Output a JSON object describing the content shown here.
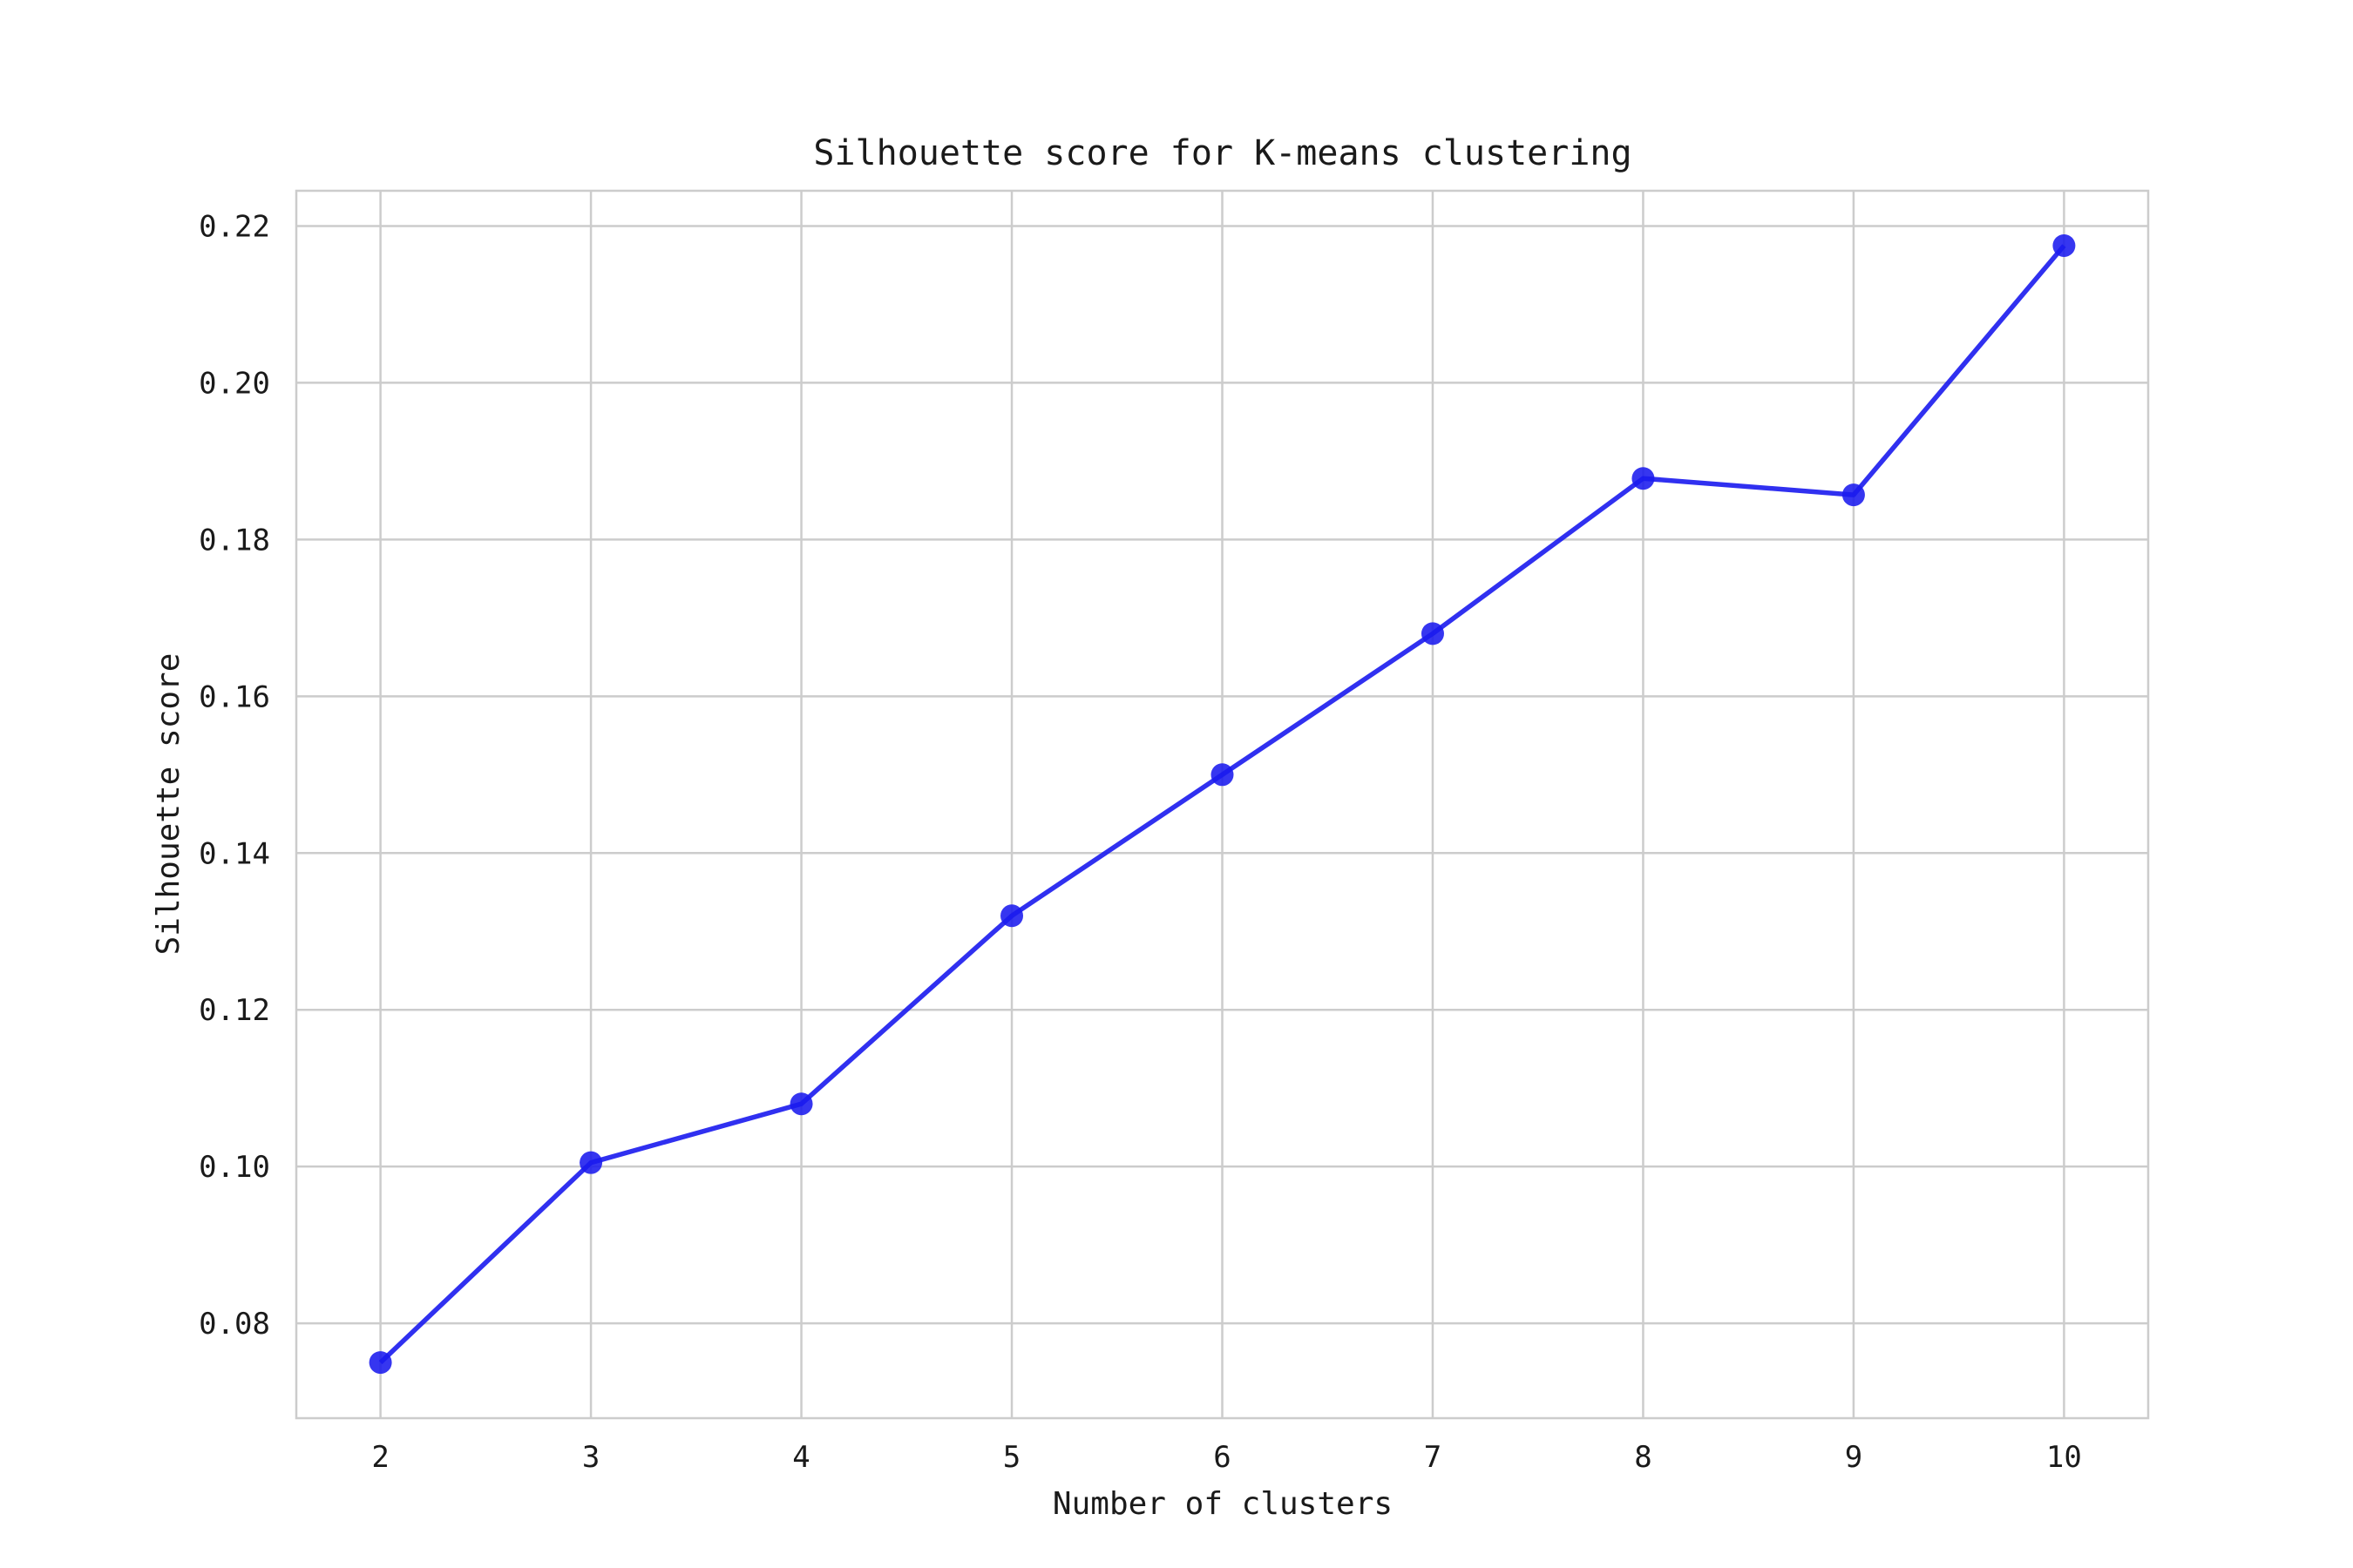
{
  "chart_data": {
    "type": "line",
    "title": "Silhouette score for K-means clustering",
    "xlabel": "Number of clusters",
    "ylabel": "Silhouette score",
    "x": [
      2,
      3,
      4,
      5,
      6,
      7,
      8,
      9,
      10
    ],
    "series": [
      {
        "values": [
          0.075,
          0.1005,
          0.108,
          0.132,
          0.15,
          0.168,
          0.1878,
          0.1857,
          0.2175
        ],
        "color": "#1a1aee",
        "marker": "circle"
      }
    ],
    "xticks": [
      "2",
      "3",
      "4",
      "5",
      "6",
      "7",
      "8",
      "9",
      "10"
    ],
    "yticks": [
      "0.08",
      "0.10",
      "0.12",
      "0.14",
      "0.16",
      "0.18",
      "0.20",
      "0.22"
    ],
    "xlim": [
      1.6,
      10.4
    ],
    "ylim": [
      0.0679,
      0.2245
    ],
    "grid": true,
    "legend": "none"
  }
}
